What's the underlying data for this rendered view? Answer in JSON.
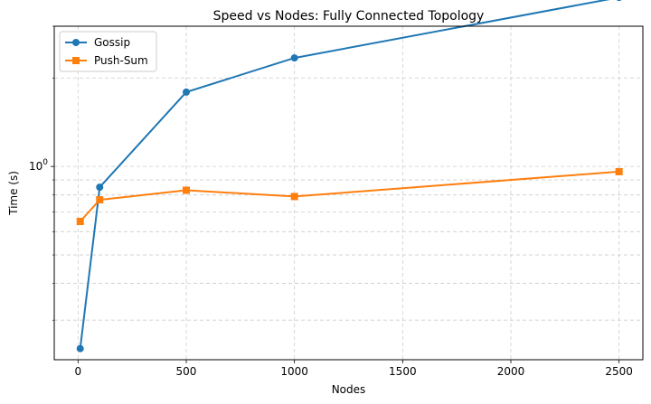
{
  "chart_data": {
    "type": "line",
    "title": "Speed vs Nodes: Fully Connected Topology",
    "xlabel": "Nodes",
    "ylabel": "Time (s)",
    "xlim": [
      -110,
      2610
    ],
    "ylim": [
      0.22,
      3.0
    ],
    "y_scale": "log",
    "grid": true,
    "legend_position": "top-left",
    "x_ticks": [
      0,
      500,
      1000,
      1500,
      2000,
      2500
    ],
    "y_major_ticks": [
      {
        "value": 1,
        "label": "10",
        "exp": "0"
      }
    ],
    "y_minor_ticks": [
      0.3,
      0.4,
      0.5,
      0.6,
      0.7,
      0.8,
      0.9,
      2,
      3
    ],
    "series": [
      {
        "name": "Gossip",
        "color": "#1f77b4",
        "marker": "circle",
        "x": [
          10,
          100,
          500,
          1000,
          2500
        ],
        "y": [
          0.24,
          0.85,
          1.79,
          2.34,
          3.76
        ]
      },
      {
        "name": "Push-Sum",
        "color": "#ff7f0e",
        "marker": "square",
        "x": [
          10,
          100,
          500,
          1000,
          2500
        ],
        "y": [
          0.65,
          0.77,
          0.83,
          0.79,
          0.96
        ]
      }
    ]
  }
}
